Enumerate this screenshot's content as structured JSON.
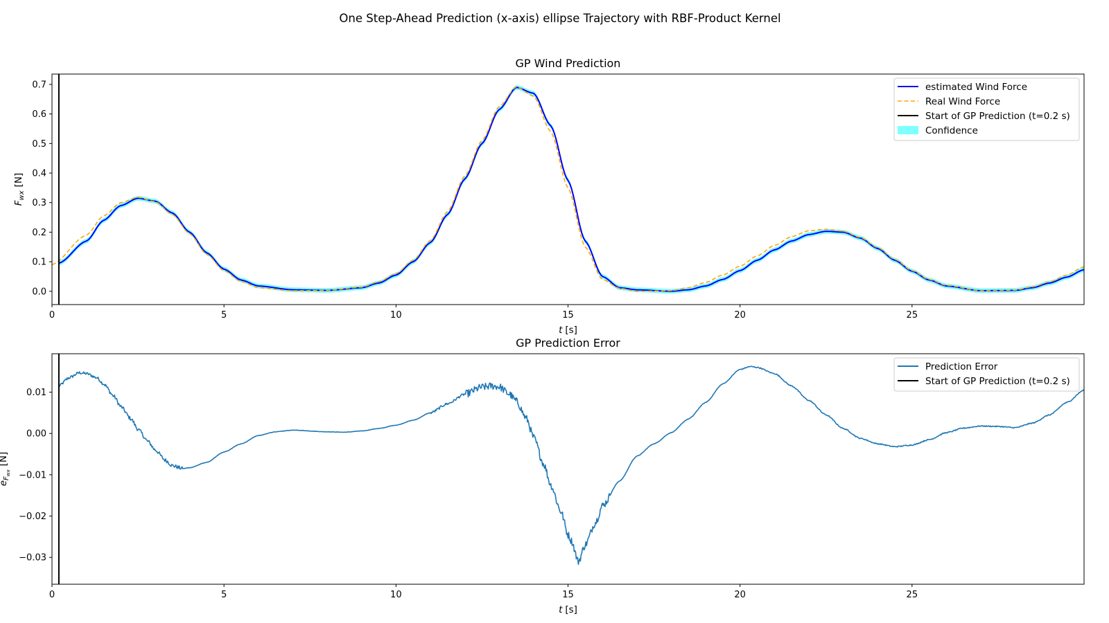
{
  "figure": {
    "suptitle": "One Step-Ahead Prediction (x-axis) ellipse Trajectory with RBF-Product Kernel"
  },
  "colors": {
    "estimated": "#0000ff",
    "real": "#ffa500",
    "start_line": "#000000",
    "confidence": "#00ffff",
    "error": "#1f77b4"
  },
  "chart_data": [
    {
      "type": "line",
      "title": "GP Wind Prediction",
      "xlabel_var": "t",
      "xlabel_unit": "[s]",
      "ylabel_var": "F",
      "ylabel_sub": "wx",
      "ylabel_unit": "[N]",
      "xlim": [
        0,
        30
      ],
      "ylim": [
        -0.045,
        0.735
      ],
      "xticks": [
        0,
        5,
        10,
        15,
        20,
        25
      ],
      "xtick_labels": [
        "0",
        "5",
        "10",
        "15",
        "20",
        "25"
      ],
      "yticks": [
        0.0,
        0.1,
        0.2,
        0.3,
        0.4,
        0.5,
        0.6,
        0.7
      ],
      "ytick_labels": [
        "0.0",
        "0.1",
        "0.2",
        "0.3",
        "0.4",
        "0.5",
        "0.6",
        "0.7"
      ],
      "legend_position": "upper-right",
      "legend": [
        "estimated Wind Force",
        "Real Wind Force",
        "Start of GP Prediction (t=0.2 s)",
        "Confidence"
      ],
      "start_of_prediction_t": 0.2,
      "confidence_halfwidth": 0.008,
      "series": [
        {
          "name": "estimated Wind Force",
          "style": "solid",
          "x": [
            0.2,
            1.0,
            1.5,
            2.0,
            2.5,
            3.0,
            3.5,
            4.0,
            4.5,
            5.0,
            5.5,
            6.0,
            7.0,
            8.0,
            9.0,
            9.5,
            10.0,
            10.5,
            11.0,
            11.5,
            12.0,
            12.5,
            13.0,
            13.5,
            14.0,
            14.5,
            15.0,
            15.5,
            16.0,
            16.5,
            17.0,
            18.0,
            18.5,
            19.0,
            19.5,
            20.0,
            20.5,
            21.0,
            21.5,
            22.0,
            22.5,
            23.0,
            23.5,
            24.0,
            24.5,
            25.0,
            25.5,
            26.0,
            27.0,
            28.0,
            28.5,
            29.0,
            29.5,
            30.0
          ],
          "y": [
            0.095,
            0.17,
            0.24,
            0.29,
            0.315,
            0.305,
            0.265,
            0.2,
            0.13,
            0.075,
            0.038,
            0.018,
            0.005,
            0.003,
            0.012,
            0.028,
            0.055,
            0.1,
            0.165,
            0.26,
            0.38,
            0.5,
            0.615,
            0.69,
            0.67,
            0.56,
            0.375,
            0.17,
            0.05,
            0.012,
            0.005,
            0.0,
            0.005,
            0.018,
            0.04,
            0.07,
            0.105,
            0.14,
            0.17,
            0.192,
            0.203,
            0.2,
            0.18,
            0.145,
            0.105,
            0.068,
            0.038,
            0.018,
            0.002,
            0.003,
            0.012,
            0.028,
            0.048,
            0.073
          ]
        },
        {
          "name": "Real Wind Force",
          "style": "dashed",
          "x": [
            0.0,
            1.0,
            1.5,
            2.0,
            2.5,
            3.0,
            3.5,
            4.0,
            4.5,
            5.0,
            5.5,
            6.0,
            7.0,
            8.0,
            9.0,
            9.5,
            10.0,
            10.5,
            11.0,
            11.5,
            12.0,
            12.5,
            13.0,
            13.5,
            14.0,
            14.5,
            15.0,
            15.5,
            16.0,
            16.5,
            17.0,
            18.0,
            18.5,
            19.0,
            19.5,
            20.0,
            20.5,
            21.0,
            21.5,
            22.0,
            22.5,
            23.0,
            23.5,
            24.0,
            24.5,
            25.0,
            25.5,
            26.0,
            27.0,
            28.0,
            28.5,
            29.0,
            29.5,
            30.0
          ],
          "y": [
            0.09,
            0.19,
            0.255,
            0.3,
            0.318,
            0.303,
            0.26,
            0.195,
            0.125,
            0.07,
            0.033,
            0.012,
            0.002,
            0.003,
            0.014,
            0.032,
            0.06,
            0.105,
            0.172,
            0.27,
            0.39,
            0.51,
            0.625,
            0.692,
            0.66,
            0.54,
            0.35,
            0.15,
            0.04,
            0.01,
            0.0,
            0.002,
            0.012,
            0.03,
            0.055,
            0.085,
            0.12,
            0.155,
            0.185,
            0.205,
            0.21,
            0.203,
            0.182,
            0.148,
            0.108,
            0.07,
            0.04,
            0.02,
            0.002,
            0.004,
            0.015,
            0.032,
            0.055,
            0.083
          ]
        }
      ]
    },
    {
      "type": "line",
      "title": "GP Prediction Error",
      "xlabel_var": "t",
      "xlabel_unit": "[s]",
      "ylabel_var": "e",
      "ylabel_sub": "F",
      "ylabel_subsub": "wx",
      "ylabel_unit": "[N]",
      "xlim": [
        0,
        30
      ],
      "ylim": [
        -0.0365,
        0.0193
      ],
      "xticks": [
        0,
        5,
        10,
        15,
        20,
        25
      ],
      "xtick_labels": [
        "0",
        "5",
        "10",
        "15",
        "20",
        "25"
      ],
      "yticks": [
        0.01,
        0.0,
        -0.01,
        -0.02,
        -0.03
      ],
      "ytick_labels": [
        "0.01",
        "0.00",
        "−0.01",
        "−0.02",
        "−0.03"
      ],
      "legend_position": "upper-right",
      "legend": [
        "Prediction Error",
        "Start of GP Prediction (t=0.2 s)"
      ],
      "start_of_prediction_t": 0.2,
      "series": [
        {
          "name": "Prediction Error",
          "style": "solid",
          "x": [
            0.2,
            0.5,
            0.8,
            1.0,
            1.3,
            1.5,
            1.8,
            2.0,
            2.3,
            2.5,
            2.8,
            3.0,
            3.3,
            3.5,
            3.8,
            4.0,
            4.5,
            5.0,
            5.5,
            6.0,
            6.5,
            7.0,
            8.0,
            8.5,
            9.0,
            9.5,
            10.0,
            10.5,
            11.0,
            11.5,
            12.0,
            12.5,
            12.8,
            13.0,
            13.3,
            13.5,
            13.8,
            14.0,
            14.3,
            14.5,
            14.8,
            15.0,
            15.1,
            15.3,
            15.5,
            15.8,
            16.0,
            16.5,
            17.0,
            17.5,
            18.0,
            18.5,
            19.0,
            19.5,
            20.0,
            20.3,
            20.5,
            21.0,
            21.5,
            22.0,
            22.5,
            23.0,
            23.5,
            24.0,
            24.5,
            25.0,
            25.5,
            26.0,
            26.5,
            27.0,
            27.5,
            28.0,
            28.5,
            29.0,
            29.5,
            30.0
          ],
          "y": [
            0.0115,
            0.0135,
            0.0147,
            0.0145,
            0.0135,
            0.012,
            0.009,
            0.0065,
            0.0035,
            0.001,
            -0.002,
            -0.004,
            -0.0065,
            -0.0078,
            -0.0085,
            -0.0083,
            -0.007,
            -0.0045,
            -0.0025,
            -0.0005,
            0.0004,
            0.0008,
            0.0004,
            0.0003,
            0.0006,
            0.0012,
            0.002,
            0.0032,
            0.005,
            0.0072,
            0.0095,
            0.0112,
            0.0115,
            0.0113,
            0.0095,
            0.0078,
            0.0035,
            -0.001,
            -0.0075,
            -0.0125,
            -0.019,
            -0.0245,
            -0.026,
            -0.031,
            -0.027,
            -0.0215,
            -0.0175,
            -0.0115,
            -0.0055,
            -0.0025,
            0.0002,
            0.0035,
            0.0075,
            0.012,
            0.0155,
            0.0162,
            0.016,
            0.0145,
            0.0115,
            0.008,
            0.0045,
            0.0012,
            -0.0012,
            -0.0025,
            -0.0032,
            -0.0028,
            -0.0015,
            0.0002,
            0.0013,
            0.0018,
            0.0017,
            0.0014,
            0.0025,
            0.0045,
            0.0075,
            0.0105
          ]
        }
      ]
    }
  ]
}
